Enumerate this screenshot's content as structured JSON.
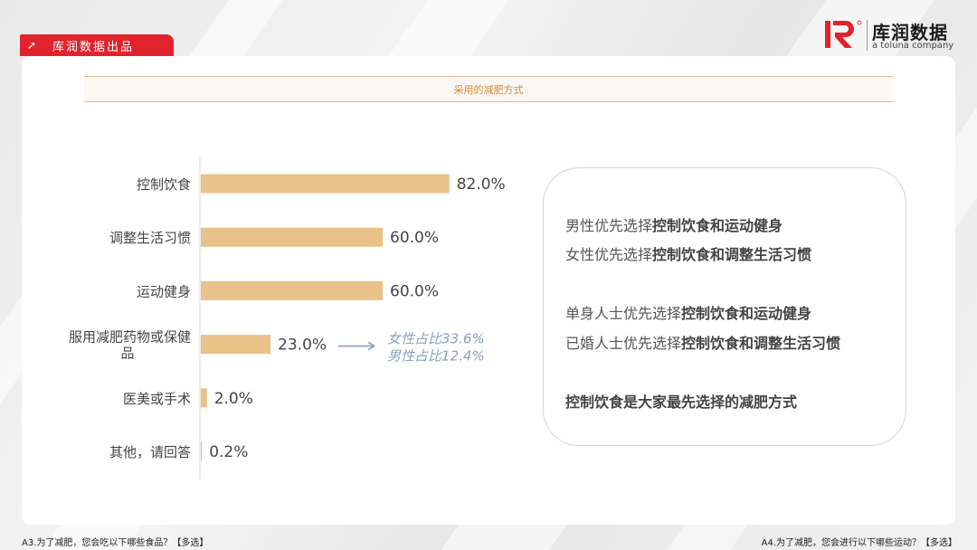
{
  "header": {
    "tag_label": "库润数据出品",
    "tag_icon": "arrow-up-right-icon",
    "logo_name": "库润数据",
    "logo_sub": "a toluna company",
    "brand_red": "#e0232d"
  },
  "chart_title": "采用的减肥方式",
  "chart_data": {
    "type": "bar",
    "orientation": "horizontal",
    "categories": [
      "控制饮食",
      "调整生活习惯",
      "运动健身",
      "服用减肥药物或保健品",
      "医美或手术",
      "其他，请回答"
    ],
    "values": [
      82.0,
      60.0,
      60.0,
      23.0,
      2.0,
      0.2
    ],
    "value_labels": [
      "82.0%",
      "60.0%",
      "60.0%",
      "23.0%",
      "2.0%",
      "0.2%"
    ],
    "bar_color": "#e8c288",
    "annotation": {
      "category_index": 3,
      "lines": [
        "女性占比33.6%",
        "男性占比12.4%"
      ],
      "color": "#8aa0c0"
    },
    "title": "",
    "xlabel": "",
    "ylabel": "",
    "grid": false
  },
  "summary": {
    "lines": [
      {
        "plain": "男性优先选择",
        "bold": "控制饮食和运动健身"
      },
      {
        "plain": "女性优先选择",
        "bold": "控制饮食和调整生活习惯"
      },
      {
        "plain": "单身人士优先选择",
        "bold": "控制饮食和运动健身"
      },
      {
        "plain": "已婚人士优先选择",
        "bold": "控制饮食和调整生活习惯"
      },
      {
        "plain": "",
        "bold": "控制饮食是大家最先选择的减肥方式"
      }
    ]
  },
  "footer": {
    "left": "A3.为了减肥，您会吃以下哪些食品？【多选】",
    "right": "A4.为了减肥，您会进行以下哪些运动？【多选】"
  }
}
